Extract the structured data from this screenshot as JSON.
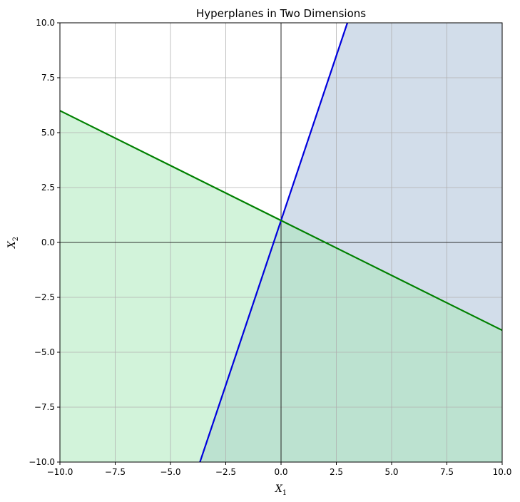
{
  "chart_data": {
    "type": "line",
    "title": "Hyperplanes in Two Dimensions",
    "xlabel": "X",
    "xlabel_sub": "1",
    "ylabel": "X",
    "ylabel_sub": "2",
    "xlim": [
      -10,
      10
    ],
    "ylim": [
      -10,
      10
    ],
    "xticks": [
      -10,
      -7.5,
      -5,
      -2.5,
      0,
      2.5,
      5,
      7.5,
      10
    ],
    "yticks": [
      -10,
      -7.5,
      -5,
      -2.5,
      0,
      2.5,
      5,
      7.5,
      10
    ],
    "xtick_labels": [
      "−10.0",
      "−7.5",
      "−5.0",
      "−2.5",
      "0.0",
      "2.5",
      "5.0",
      "7.5",
      "10.0"
    ],
    "ytick_labels": [
      "−10.0",
      "−7.5",
      "−5.0",
      "−2.5",
      "0.0",
      "2.5",
      "5.0",
      "7.5",
      "10.0"
    ],
    "grid": true,
    "series": [
      {
        "color": "#0000dd",
        "x": [
          -3.667,
          3
        ],
        "y": [
          -10,
          10
        ]
      },
      {
        "color": "#008000",
        "x": [
          -10,
          10
        ],
        "y": [
          6,
          -4
        ]
      }
    ],
    "regions": [
      {
        "side_of": 0,
        "color": "#b4c7dc",
        "opacity": 0.6,
        "description_sign": "right"
      },
      {
        "side_of": 1,
        "color": "#a6e8b6",
        "opacity": 0.5,
        "description_sign": "below"
      }
    ],
    "reference_lines": {
      "x": 0,
      "y": 0,
      "color": "#000000"
    }
  }
}
